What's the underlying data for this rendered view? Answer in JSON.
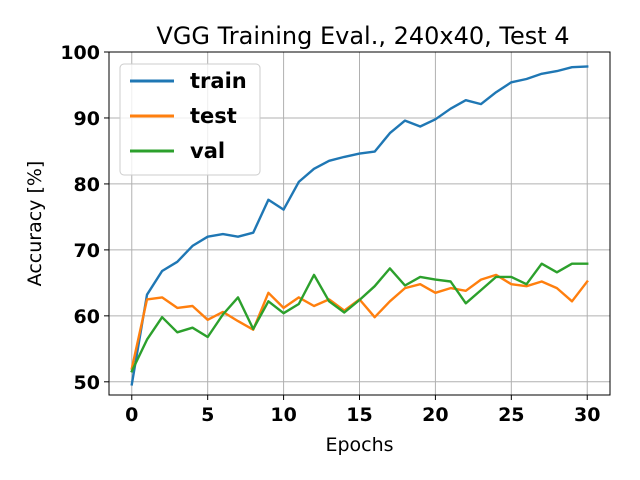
{
  "chart_data": {
    "type": "line",
    "title": "VGG Training Eval., 240x40, Test 4",
    "xlabel": "Epochs",
    "ylabel": "Accuracy [%]",
    "xlim": [
      -1.5,
      31.5
    ],
    "ylim": [
      48,
      100
    ],
    "xticks": [
      0,
      5,
      10,
      15,
      20,
      25,
      30
    ],
    "yticks": [
      50,
      60,
      70,
      80,
      90,
      100
    ],
    "grid": true,
    "legend_position": "top-left",
    "x": [
      0,
      1,
      2,
      3,
      4,
      5,
      6,
      7,
      8,
      9,
      10,
      11,
      12,
      13,
      14,
      15,
      16,
      17,
      18,
      19,
      20,
      21,
      22,
      23,
      24,
      25,
      26,
      27,
      28,
      29,
      30
    ],
    "series": [
      {
        "name": "train",
        "color": "#1f77b4",
        "values": [
          49.6,
          63.2,
          66.8,
          68.2,
          70.6,
          72.0,
          72.4,
          72.0,
          72.6,
          77.6,
          76.1,
          80.3,
          82.3,
          83.5,
          84.1,
          84.6,
          84.9,
          87.7,
          89.6,
          88.7,
          89.8,
          91.4,
          92.7,
          92.1,
          93.9,
          95.4,
          95.9,
          96.7,
          97.1,
          97.7,
          97.8
        ]
      },
      {
        "name": "test",
        "color": "#ff7f0e",
        "values": [
          52.0,
          62.5,
          62.8,
          61.2,
          61.5,
          59.4,
          60.6,
          59.2,
          57.9,
          63.5,
          61.2,
          62.8,
          61.5,
          62.5,
          60.8,
          62.5,
          59.8,
          62.2,
          64.2,
          64.8,
          63.5,
          64.2,
          63.8,
          65.5,
          66.2,
          64.8,
          64.5,
          65.2,
          64.2,
          62.2,
          65.2
        ]
      },
      {
        "name": "val",
        "color": "#2ca02c",
        "values": [
          51.6,
          56.4,
          59.8,
          57.5,
          58.2,
          56.8,
          60.2,
          62.8,
          58.0,
          62.2,
          60.4,
          61.8,
          66.2,
          62.2,
          60.5,
          62.4,
          64.5,
          67.2,
          64.6,
          65.9,
          65.5,
          65.2,
          61.9,
          63.9,
          65.9,
          65.9,
          64.8,
          67.9,
          66.6,
          67.9,
          67.9
        ]
      }
    ]
  }
}
